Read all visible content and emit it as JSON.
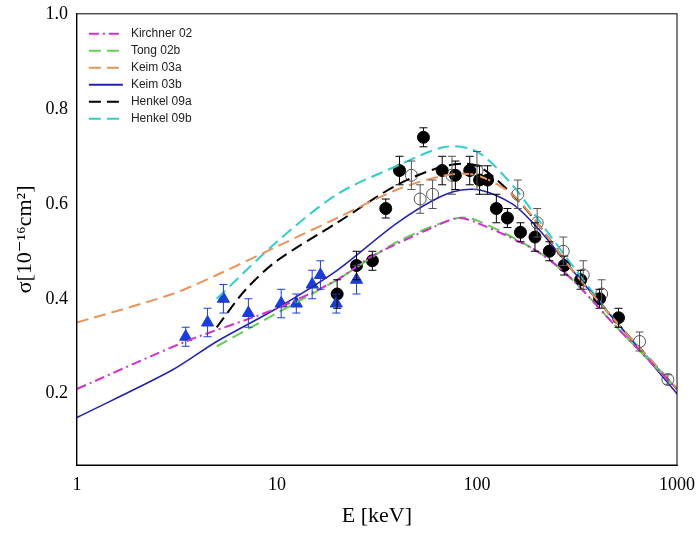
{
  "chart_data": {
    "type": "line",
    "x_label": "E [keV]",
    "y_label": "σ[10⁻¹⁶cm²]",
    "log": "x",
    "grid": false,
    "legend": "upper left",
    "xlim": [
      1,
      1000
    ],
    "xticks": [
      1,
      10,
      100,
      1000
    ],
    "ylim": [
      0.05,
      1.0
    ],
    "yticks": [
      0.2,
      0.4,
      0.6,
      0.8,
      {
        "value": 1.0,
        "label": "1.0"
      }
    ],
    "series": [
      {
        "name": "Kirchner 02",
        "color": "#cc33cc",
        "line_style": "dashdot",
        "x": [
          1,
          3.5,
          10,
          20,
          30,
          60,
          80,
          100,
          200,
          300,
          500,
          1000
        ],
        "values": [
          0.21,
          0.31,
          0.38,
          0.44,
          0.49,
          0.55,
          0.57,
          0.56,
          0.5,
          0.44,
          0.34,
          0.21
        ]
      },
      {
        "name": "Tong 02b",
        "color": "#66cc55",
        "line_style": "dashed",
        "x": [
          5,
          10,
          20,
          40,
          80,
          100,
          200,
          300,
          500,
          1000
        ],
        "values": [
          0.3,
          0.37,
          0.44,
          0.52,
          0.57,
          0.565,
          0.5,
          0.44,
          0.34,
          0.21
        ]
      },
      {
        "name": "Keim 03a",
        "color": "#e8945a",
        "line_style": "dashed",
        "x": [
          1,
          3,
          5,
          10,
          20,
          40,
          70,
          100,
          150,
          200,
          300,
          500,
          1000
        ],
        "values": [
          0.35,
          0.41,
          0.45,
          0.51,
          0.57,
          0.63,
          0.66,
          0.66,
          0.62,
          0.56,
          0.46,
          0.35,
          0.21
        ]
      },
      {
        "name": "Keim 03b",
        "color": "#2222b0",
        "line_style": "solid",
        "x": [
          1,
          3,
          5,
          10,
          20,
          40,
          70,
          100,
          150,
          200,
          300,
          500,
          1000
        ],
        "values": [
          0.15,
          0.25,
          0.31,
          0.38,
          0.46,
          0.56,
          0.62,
          0.63,
          0.6,
          0.55,
          0.46,
          0.35,
          0.2
        ]
      },
      {
        "name": "Henkel 09a",
        "color": "#000000",
        "line_style": "dashed",
        "x": [
          5,
          7,
          10,
          20,
          40,
          70,
          100,
          150,
          200,
          300,
          500,
          1000
        ],
        "values": [
          0.34,
          0.42,
          0.48,
          0.56,
          0.64,
          0.68,
          0.68,
          0.62,
          0.56,
          0.46,
          0.35,
          0.21
        ]
      },
      {
        "name": "Henkel 09b",
        "color": "#33cccc",
        "line_style": "dashed",
        "x": [
          5,
          10,
          20,
          40,
          70,
          100,
          150,
          200,
          300,
          500,
          1000
        ],
        "values": [
          0.4,
          0.52,
          0.62,
          0.68,
          0.72,
          0.71,
          0.64,
          0.57,
          0.47,
          0.35,
          0.21
        ]
      },
      {
        "type": "scatter",
        "color": "#1a3fd6",
        "marker": "triangle",
        "x": [
          3.5,
          4.5,
          5.4,
          7.2,
          10.5,
          12.5,
          15,
          16.5,
          19.8,
          25
        ],
        "values": [
          0.32,
          0.35,
          0.4,
          0.37,
          0.39,
          0.39,
          0.43,
          0.45,
          0.39,
          0.44
        ],
        "errors": [
          0.02,
          0.03,
          0.03,
          0.03,
          0.03,
          0.02,
          0.03,
          0.03,
          0.02,
          0.03
        ]
      },
      {
        "type": "scatter",
        "color": "#000000",
        "marker": "circle",
        "x": [
          20,
          25,
          30,
          35,
          41,
          54,
          67,
          78,
          92,
          103,
          113,
          125,
          142,
          165,
          195,
          230,
          273,
          330,
          410,
          510
        ],
        "values": [
          0.41,
          0.47,
          0.48,
          0.59,
          0.67,
          0.74,
          0.67,
          0.66,
          0.67,
          0.65,
          0.65,
          0.59,
          0.57,
          0.54,
          0.53,
          0.5,
          0.47,
          0.44,
          0.4,
          0.36
        ],
        "errors": [
          0.03,
          0.03,
          0.02,
          0.02,
          0.03,
          0.02,
          0.03,
          0.03,
          0.03,
          0.03,
          0.03,
          0.03,
          0.02,
          0.02,
          0.03,
          0.02,
          0.02,
          0.02,
          0.02,
          0.02
        ]
      },
      {
        "type": "scatter",
        "color": "#555555",
        "marker": "open_circle",
        "x": [
          47,
          52,
          60,
          75,
          100,
          160,
          200,
          270,
          340,
          420,
          650,
          900
        ],
        "values": [
          0.66,
          0.61,
          0.62,
          0.66,
          0.67,
          0.62,
          0.56,
          0.5,
          0.45,
          0.41,
          0.31,
          0.23
        ],
        "errors": [
          0.03,
          0.03,
          0.03,
          0.04,
          0.04,
          0.03,
          0.03,
          0.03,
          0.03,
          0.03,
          0.02,
          0.01
        ]
      }
    ]
  }
}
